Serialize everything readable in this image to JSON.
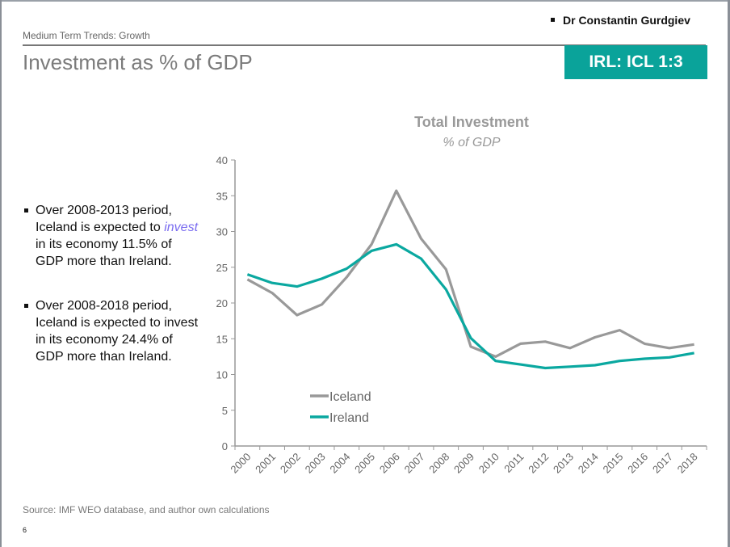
{
  "header": {
    "author": "Dr Constantin Gurdgiev",
    "section": "Medium Term Trends: Growth",
    "title": "Investment as % of GDP",
    "badge": "IRL: ICL 1:3"
  },
  "bullets": [
    {
      "pre": "Over 2008-2013 period, Iceland is expected to ",
      "highlight": "invest",
      "post": " in its economy 11.5% of GDP more than Ireland."
    },
    {
      "pre": "Over 2008-2018 period, Iceland is expected to invest in its economy 24.4% of GDP more than Ireland.",
      "highlight": "",
      "post": ""
    }
  ],
  "footer": {
    "source": "Source: IMF WEO database, and author own calculations",
    "page": "6"
  },
  "colors": {
    "accent": "#0aa39a",
    "iceland": "#999999",
    "ireland": "#0aa8a0",
    "highlight": "#7a6cf0"
  },
  "chart_data": {
    "type": "line",
    "title": "Total Investment",
    "subtitle": "% of GDP",
    "xlabel": "",
    "ylabel": "",
    "ylim": [
      0,
      40
    ],
    "yticks": [
      0,
      5,
      10,
      15,
      20,
      25,
      30,
      35,
      40
    ],
    "grid": false,
    "legend": "bottom-left",
    "categories": [
      "2000",
      "2001",
      "2002",
      "2003",
      "2004",
      "2005",
      "2006",
      "2007",
      "2008",
      "2009",
      "2010",
      "2011",
      "2012",
      "2013",
      "2014",
      "2015",
      "2016",
      "2017",
      "2018"
    ],
    "series": [
      {
        "name": "Iceland",
        "color": "#999999",
        "values": [
          23.3,
          21.4,
          18.3,
          19.8,
          23.6,
          28.2,
          35.7,
          29.0,
          24.7,
          13.9,
          12.5,
          14.3,
          14.6,
          13.7,
          15.2,
          16.2,
          14.3,
          13.7,
          14.2
        ]
      },
      {
        "name": "Ireland",
        "color": "#0aa8a0",
        "values": [
          24.0,
          22.8,
          22.3,
          23.4,
          24.8,
          27.3,
          28.2,
          26.2,
          21.9,
          15.1,
          11.9,
          11.4,
          10.9,
          11.1,
          11.3,
          11.9,
          12.2,
          12.4,
          13.0
        ]
      }
    ]
  }
}
